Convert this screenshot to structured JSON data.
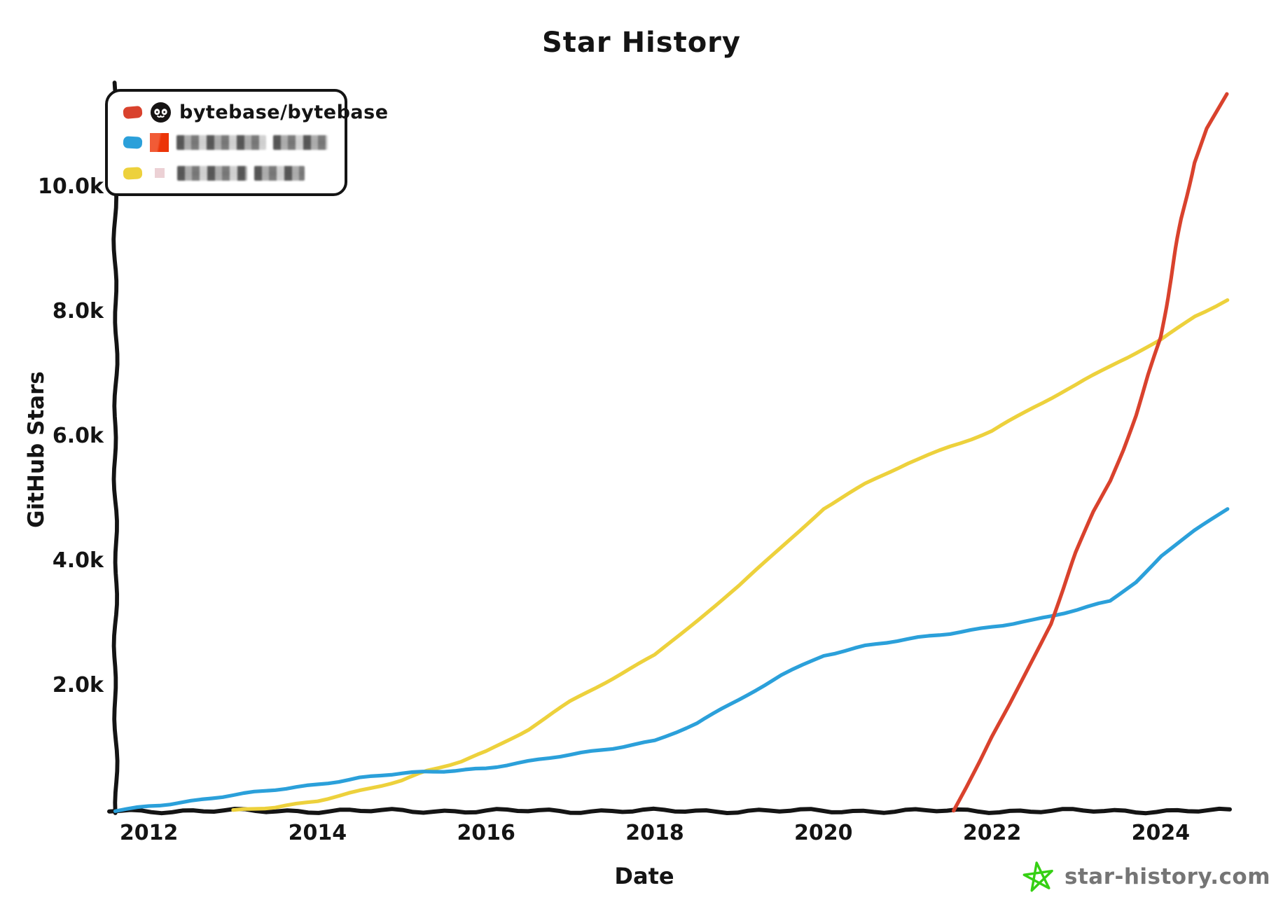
{
  "title": "Star History",
  "axes": {
    "x_label": "Date",
    "y_label": "GitHub Stars",
    "x_ticks": [
      "2012",
      "2014",
      "2016",
      "2018",
      "2020",
      "2022",
      "2024"
    ],
    "x_tick_years": [
      2012,
      2014,
      2016,
      2018,
      2020,
      2022,
      2024
    ],
    "y_ticks": [
      "2.0k",
      "4.0k",
      "6.0k",
      "8.0k",
      "10.0k"
    ],
    "y_tick_values": [
      2000,
      4000,
      6000,
      8000,
      10000
    ]
  },
  "legend": {
    "items": [
      {
        "repo": "bytebase/bytebase",
        "color": "#d9422d",
        "icon": "github-icon",
        "redacted": false
      },
      {
        "repo": "",
        "color": "#2ba0da",
        "icon": "redacted-avatar-orange",
        "redacted": true
      },
      {
        "repo": "",
        "color": "#edd13c",
        "icon": "redacted-avatar-pink",
        "redacted": true
      }
    ]
  },
  "footer": {
    "brand": "star-history.com",
    "star_color": "#35d013"
  },
  "chart_data": {
    "type": "line",
    "title": "Star History",
    "xlabel": "Date",
    "ylabel": "GitHub Stars",
    "x_range": [
      2011.55,
      2024.8
    ],
    "ylim": [
      0,
      11500
    ],
    "grid": false,
    "legend_position": "top-left",
    "x_unit": "year",
    "y_unit": "stars",
    "series": [
      {
        "name": "bytebase/bytebase",
        "redacted": false,
        "color": "#d9422d",
        "points": [
          [
            2021.55,
            0
          ],
          [
            2021.7,
            380
          ],
          [
            2021.85,
            780
          ],
          [
            2022.0,
            1200
          ],
          [
            2022.2,
            1700
          ],
          [
            2022.45,
            2350
          ],
          [
            2022.7,
            3000
          ],
          [
            2022.85,
            3550
          ],
          [
            2023.0,
            4150
          ],
          [
            2023.2,
            4800
          ],
          [
            2023.4,
            5300
          ],
          [
            2023.55,
            5800
          ],
          [
            2023.7,
            6350
          ],
          [
            2023.85,
            7000
          ],
          [
            2024.0,
            7600
          ],
          [
            2024.1,
            8400
          ],
          [
            2024.25,
            9500
          ],
          [
            2024.4,
            10400
          ],
          [
            2024.55,
            10950
          ],
          [
            2024.79,
            11500
          ]
        ]
      },
      {
        "name": "",
        "redacted": true,
        "color": "#2ba0da",
        "points": [
          [
            2011.6,
            0
          ],
          [
            2012.0,
            80
          ],
          [
            2012.5,
            160
          ],
          [
            2013.0,
            250
          ],
          [
            2013.5,
            340
          ],
          [
            2014.0,
            430
          ],
          [
            2014.5,
            530
          ],
          [
            2015.0,
            600
          ],
          [
            2015.5,
            640
          ],
          [
            2016.0,
            690
          ],
          [
            2016.5,
            790
          ],
          [
            2017.0,
            900
          ],
          [
            2017.5,
            1010
          ],
          [
            2018.0,
            1130
          ],
          [
            2018.5,
            1400
          ],
          [
            2019.0,
            1780
          ],
          [
            2019.5,
            2180
          ],
          [
            2020.0,
            2500
          ],
          [
            2020.5,
            2650
          ],
          [
            2021.0,
            2750
          ],
          [
            2021.5,
            2850
          ],
          [
            2022.0,
            2960
          ],
          [
            2022.5,
            3060
          ],
          [
            2022.7,
            3120
          ],
          [
            2023.0,
            3220
          ],
          [
            2023.4,
            3370
          ],
          [
            2023.7,
            3680
          ],
          [
            2024.0,
            4100
          ],
          [
            2024.4,
            4500
          ],
          [
            2024.79,
            4850
          ]
        ]
      },
      {
        "name": "",
        "redacted": true,
        "color": "#edd13c",
        "points": [
          [
            2013.0,
            0
          ],
          [
            2013.5,
            60
          ],
          [
            2014.0,
            170
          ],
          [
            2014.5,
            320
          ],
          [
            2015.0,
            480
          ],
          [
            2015.3,
            640
          ],
          [
            2015.7,
            800
          ],
          [
            2016.0,
            960
          ],
          [
            2016.5,
            1310
          ],
          [
            2017.0,
            1750
          ],
          [
            2017.5,
            2120
          ],
          [
            2018.0,
            2500
          ],
          [
            2018.6,
            3180
          ],
          [
            2019.0,
            3620
          ],
          [
            2019.5,
            4230
          ],
          [
            2020.0,
            4850
          ],
          [
            2020.5,
            5240
          ],
          [
            2021.0,
            5580
          ],
          [
            2021.5,
            5850
          ],
          [
            2022.0,
            6100
          ],
          [
            2022.5,
            6480
          ],
          [
            2023.0,
            6830
          ],
          [
            2023.5,
            7210
          ],
          [
            2024.0,
            7560
          ],
          [
            2024.4,
            7940
          ],
          [
            2024.79,
            8200
          ]
        ]
      }
    ]
  }
}
